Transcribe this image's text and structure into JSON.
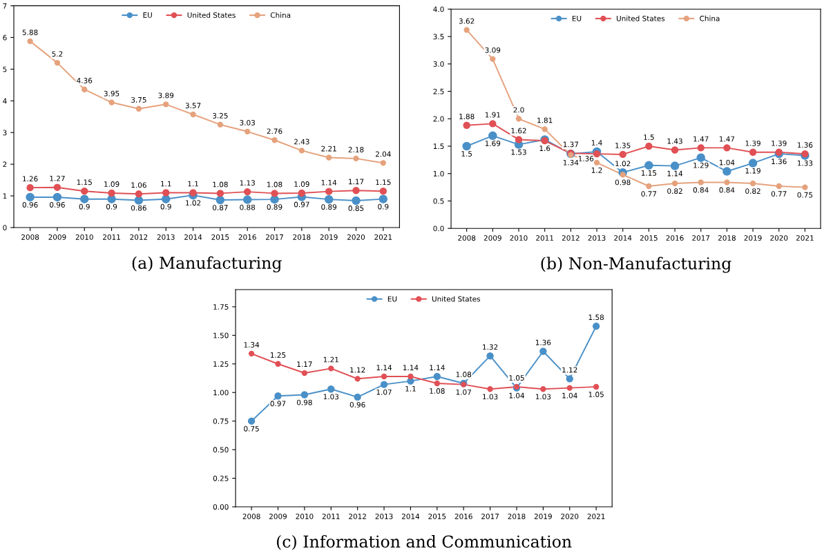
{
  "chart_data": [
    {
      "type": "line",
      "title": "(a) Manufacturing",
      "categories": [
        "2008",
        "2009",
        "2010",
        "2011",
        "2012",
        "2013",
        "2014",
        "2015",
        "2016",
        "2017",
        "2018",
        "2019",
        "2020",
        "2021"
      ],
      "ylim": [
        0,
        7
      ],
      "yticks": [
        0,
        1,
        2,
        3,
        4,
        5,
        6,
        7
      ],
      "marker": "circle",
      "legend": "top",
      "grid": false,
      "data_labels": true,
      "series": [
        {
          "name": "EU",
          "color": "#4a90c8",
          "values": [
            0.96,
            0.96,
            0.9,
            0.9,
            0.86,
            0.9,
            1.02,
            0.87,
            0.88,
            0.89,
            0.97,
            0.89,
            0.85,
            0.9
          ]
        },
        {
          "name": "United States",
          "color": "#e05055",
          "values": [
            1.26,
            1.27,
            1.15,
            1.09,
            1.06,
            1.1,
            1.1,
            1.08,
            1.13,
            1.08,
            1.09,
            1.14,
            1.17,
            1.15
          ]
        },
        {
          "name": "China",
          "color": "#e5a27d",
          "values": [
            5.88,
            5.2,
            4.36,
            3.95,
            3.75,
            3.89,
            3.57,
            3.25,
            3.03,
            2.76,
            2.43,
            2.21,
            2.18,
            2.04
          ]
        }
      ]
    },
    {
      "type": "line",
      "title": "(b) Non-Manufacturing",
      "categories": [
        "2008",
        "2009",
        "2010",
        "2011",
        "2012",
        "2013",
        "2014",
        "2015",
        "2016",
        "2017",
        "2018",
        "2019",
        "2020",
        "2021"
      ],
      "ylim": [
        0,
        4
      ],
      "yticks": [
        {
          "value": 0,
          "label": "0.0"
        },
        {
          "value": 0.5,
          "label": "0.5"
        },
        {
          "value": 1,
          "label": "1.0"
        },
        {
          "value": 1.5,
          "label": "1.5"
        },
        {
          "value": 2,
          "label": "2.0"
        },
        {
          "value": 2.5,
          "label": "2.5"
        },
        {
          "value": 3,
          "label": "3.0"
        },
        {
          "value": 3.5,
          "label": "3.5"
        },
        {
          "value": 4,
          "label": "4.0"
        }
      ],
      "marker": "circle",
      "legend": "top",
      "grid": false,
      "series": [
        {
          "name": "EU",
          "color": "#4a90c8",
          "values": [
            1.5,
            1.69,
            1.53,
            1.62,
            1.36,
            1.4,
            1.02,
            1.15,
            1.14,
            1.29,
            1.04,
            1.19,
            1.36,
            1.33
          ],
          "value_labels": [
            "1.5",
            "1.69",
            "1.53",
            null,
            null,
            "1.4",
            "1.02",
            "1.15",
            "1.14",
            "1.29",
            "1.04",
            "1.19",
            "1.36",
            "1.33"
          ]
        },
        {
          "name": "United States",
          "color": "#e05055",
          "values": [
            1.88,
            1.91,
            1.62,
            1.6,
            1.37,
            1.36,
            1.35,
            1.5,
            1.43,
            1.47,
            1.47,
            1.39,
            1.39,
            1.36
          ],
          "value_labels": [
            "1.88",
            "1.91",
            "1.62",
            "1.6",
            "1.37",
            "1.36",
            "1.35",
            "1.5",
            "1.43",
            "1.47",
            "1.47",
            "1.39",
            "1.39",
            "1.36"
          ]
        },
        {
          "name": "China",
          "color": "#e5a27d",
          "values": [
            3.62,
            3.09,
            2.0,
            1.81,
            1.34,
            1.2,
            0.98,
            0.77,
            0.82,
            0.84,
            0.84,
            0.82,
            0.77,
            0.75
          ],
          "value_labels": [
            "3.62",
            "3.09",
            "2.0",
            "1.81",
            "1.34",
            "1.2",
            "0.98",
            "0.77",
            "0.82",
            "0.84",
            "0.84",
            "0.82",
            "0.77",
            "0.75"
          ]
        }
      ]
    },
    {
      "type": "line",
      "title": "(c) Information and Communication",
      "categories": [
        "2008",
        "2009",
        "2010",
        "2011",
        "2012",
        "2013",
        "2014",
        "2015",
        "2016",
        "2017",
        "2018",
        "2019",
        "2020",
        "2021"
      ],
      "ylim": [
        0,
        1.9
      ],
      "yticks": [
        {
          "value": 0,
          "label": "0.00"
        },
        {
          "value": 0.25,
          "label": "0.25"
        },
        {
          "value": 0.5,
          "label": "0.50"
        },
        {
          "value": 0.75,
          "label": "0.75"
        },
        {
          "value": 1,
          "label": "1.00"
        },
        {
          "value": 1.25,
          "label": "1.25"
        },
        {
          "value": 1.5,
          "label": "1.50"
        },
        {
          "value": 1.75,
          "label": "1.75"
        }
      ],
      "marker": "circle",
      "legend": "top",
      "grid": false,
      "data_labels": true,
      "series": [
        {
          "name": "EU",
          "color": "#4a90c8",
          "values": [
            0.75,
            0.97,
            0.98,
            1.03,
            0.96,
            1.07,
            1.1,
            1.14,
            1.08,
            1.32,
            1.04,
            1.36,
            1.12,
            1.58
          ]
        },
        {
          "name": "United States",
          "color": "#e05055",
          "values": [
            1.34,
            1.25,
            1.17,
            1.21,
            1.12,
            1.14,
            1.14,
            1.08,
            1.07,
            1.03,
            1.05,
            1.03,
            1.04,
            1.05
          ]
        }
      ]
    }
  ]
}
